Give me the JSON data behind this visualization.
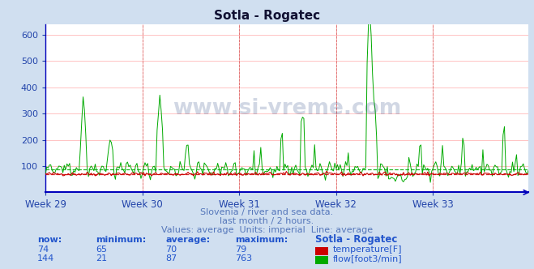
{
  "title": "Sotla - Rogatec",
  "bg_color": "#d0dff0",
  "plot_bg_color": "#ffffff",
  "grid_color": "#ff8888",
  "xlabel_weeks": [
    "Week 29",
    "Week 30",
    "Week 31",
    "Week 32",
    "Week 33"
  ],
  "ylim": [
    0,
    640
  ],
  "yticks": [
    100,
    200,
    300,
    400,
    500,
    600
  ],
  "temp_color": "#cc0000",
  "flow_color": "#00aa00",
  "temp_avg": 70,
  "flow_avg": 87,
  "temp_min": 65,
  "temp_max": 79,
  "temp_now": 74,
  "flow_min": 21,
  "flow_max": 763,
  "flow_now": 144,
  "subtitle1": "Slovenia / river and sea data.",
  "subtitle2": "last month / 2 hours.",
  "subtitle3": "Values: average  Units: imperial  Line: average",
  "subtitle_color": "#5577bb",
  "table_header": "Sotla - Rogatec",
  "table_color": "#2255cc",
  "n_points": 360,
  "watermark_text": "www.si-vreme.com",
  "watermark_color": "#1a3a7a",
  "axis_color": "#0000bb",
  "tick_color": "#2244aa"
}
